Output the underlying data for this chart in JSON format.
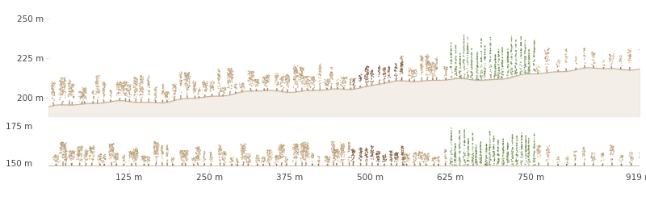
{
  "figsize": [
    8.0,
    2.44
  ],
  "dpi": 100,
  "background_color": "#ffffff",
  "top_panel": {
    "ylim": [
      188,
      258
    ],
    "yticks": [
      200,
      225,
      250
    ],
    "ytick_labels": [
      "200 m",
      "225 m",
      "250 m"
    ]
  },
  "bottom_panel": {
    "ylim": [
      -3,
      32
    ],
    "ytick_labels": [
      "150 m",
      "175 m"
    ]
  },
  "xticks": [
    125,
    250,
    375,
    500,
    625,
    750,
    919
  ],
  "xtick_labels": [
    "125 m",
    "250 m",
    "375 m",
    "500 m",
    "625 m",
    "750 m",
    "919 m"
  ],
  "xlim": [
    0,
    919
  ],
  "tick_fontsize": 7.5,
  "tick_color": "#444444",
  "ground_color": "#c8b090",
  "foliage_colors": [
    "#c4a882",
    "#b89868",
    "#d4b892",
    "#a08060",
    "#c8b078",
    "#b0906a",
    "#d8c09a"
  ],
  "green_colors": [
    "#6b8a50",
    "#7a9a5a",
    "#5a7040",
    "#8aaa60"
  ],
  "burnt_colors": [
    "#8b6040",
    "#6a4a28",
    "#7a5030"
  ],
  "point_size": 1.2,
  "point_alpha": 0.75
}
